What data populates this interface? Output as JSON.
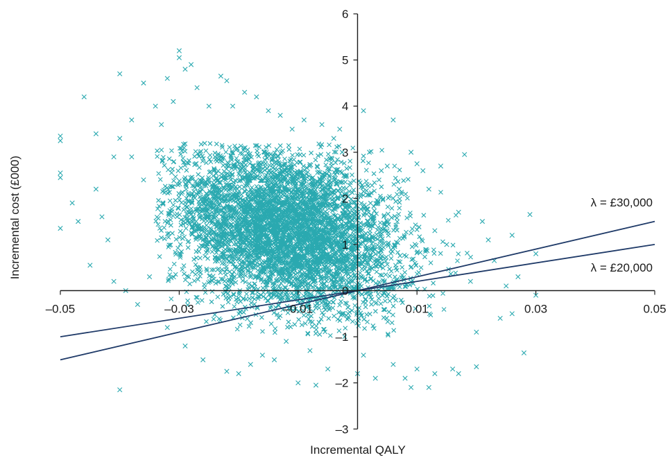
{
  "chart_data": {
    "type": "scatter",
    "title": "",
    "xlabel": "Incremental QALY",
    "ylabel": "Incremental cost (£000)",
    "xlim": [
      -0.05,
      0.05
    ],
    "ylim": [
      -3,
      6
    ],
    "x_ticks": [
      -0.05,
      -0.03,
      -0.01,
      0.01,
      0.03,
      0.05
    ],
    "x_tick_labels": [
      "–0.05",
      "–0.03",
      "–0.01",
      "0.01",
      "0.03",
      "0.05"
    ],
    "y_ticks": [
      -3,
      -2,
      -1,
      0,
      1,
      2,
      3,
      4,
      5,
      6
    ],
    "y_tick_labels": [
      "–3",
      "–2",
      "–1",
      "0",
      "1",
      "2",
      "3",
      "4",
      "5",
      "6"
    ],
    "grid": false,
    "marker": "x",
    "colors": {
      "points": "#2aa9b0",
      "lines": "#1f3a68",
      "axes": "#1a1a1a"
    },
    "lines": [
      {
        "label": "λ = £30,000",
        "slope": 30,
        "x_range": [
          -0.05,
          0.05
        ]
      },
      {
        "label": "λ = £20,000",
        "slope": 20,
        "x_range": [
          -0.05,
          0.05
        ]
      }
    ],
    "point_cloud": {
      "description_of_density": "dense cloud of probabilistic simulations",
      "core_center": [
        -0.012,
        1.3
      ],
      "core_x_range": [
        -0.034,
        0.02
      ],
      "core_y_range": [
        -1.0,
        3.2
      ],
      "count_estimate": 10000
    },
    "series": [
      {
        "name": "",
        "points": [
          [
            -0.05,
            3.35
          ],
          [
            -0.05,
            3.25
          ],
          [
            -0.05,
            2.55
          ],
          [
            -0.05,
            2.45
          ],
          [
            -0.05,
            1.35
          ],
          [
            -0.048,
            1.9
          ],
          [
            -0.047,
            1.5
          ],
          [
            -0.046,
            4.2
          ],
          [
            -0.045,
            0.55
          ],
          [
            -0.044,
            3.4
          ],
          [
            -0.044,
            2.2
          ],
          [
            -0.043,
            1.6
          ],
          [
            -0.042,
            1.1
          ],
          [
            -0.041,
            2.9
          ],
          [
            -0.041,
            0.2
          ],
          [
            -0.04,
            4.7
          ],
          [
            -0.04,
            3.3
          ],
          [
            -0.04,
            -2.15
          ],
          [
            -0.039,
            0.0
          ],
          [
            -0.038,
            2.9
          ],
          [
            -0.038,
            3.7
          ],
          [
            -0.037,
            -0.3
          ],
          [
            -0.036,
            4.5
          ],
          [
            -0.036,
            2.4
          ],
          [
            -0.035,
            0.3
          ],
          [
            -0.034,
            4.0
          ],
          [
            -0.033,
            3.6
          ],
          [
            -0.032,
            4.6
          ],
          [
            -0.032,
            -0.8
          ],
          [
            -0.031,
            4.1
          ],
          [
            -0.03,
            5.2
          ],
          [
            -0.03,
            5.05
          ],
          [
            -0.029,
            4.8
          ],
          [
            -0.029,
            -1.2
          ],
          [
            -0.028,
            4.9
          ],
          [
            -0.027,
            4.4
          ],
          [
            -0.026,
            -1.5
          ],
          [
            -0.025,
            4.0
          ],
          [
            -0.023,
            4.65
          ],
          [
            -0.022,
            4.55
          ],
          [
            -0.022,
            -1.75
          ],
          [
            -0.021,
            4.0
          ],
          [
            -0.02,
            -1.8
          ],
          [
            -0.019,
            4.3
          ],
          [
            -0.018,
            -1.6
          ],
          [
            -0.017,
            4.2
          ],
          [
            -0.016,
            -1.4
          ],
          [
            -0.015,
            3.9
          ],
          [
            -0.014,
            -1.5
          ],
          [
            -0.013,
            3.8
          ],
          [
            -0.012,
            -1.1
          ],
          [
            -0.011,
            3.5
          ],
          [
            -0.01,
            -2.0
          ],
          [
            -0.009,
            3.7
          ],
          [
            -0.008,
            -1.3
          ],
          [
            -0.007,
            -2.05
          ],
          [
            -0.006,
            3.6
          ],
          [
            -0.005,
            -1.7
          ],
          [
            -0.004,
            3.3
          ],
          [
            -0.003,
            3.5
          ],
          [
            0.0,
            -1.8
          ],
          [
            0.001,
            3.9
          ],
          [
            0.001,
            -1.4
          ],
          [
            0.002,
            3.0
          ],
          [
            0.003,
            -1.9
          ],
          [
            0.004,
            2.6
          ],
          [
            0.005,
            2.7
          ],
          [
            0.006,
            3.7
          ],
          [
            0.006,
            -1.6
          ],
          [
            0.007,
            2.2
          ],
          [
            0.008,
            -1.9
          ],
          [
            0.009,
            3.0
          ],
          [
            0.009,
            -2.1
          ],
          [
            0.01,
            2.75
          ],
          [
            0.01,
            -1.7
          ],
          [
            0.011,
            2.6
          ],
          [
            0.012,
            2.2
          ],
          [
            0.012,
            -2.1
          ],
          [
            0.013,
            1.3
          ],
          [
            0.013,
            -1.8
          ],
          [
            0.014,
            2.7
          ],
          [
            0.015,
            1.0
          ],
          [
            0.016,
            -1.7
          ],
          [
            0.017,
            1.7
          ],
          [
            0.017,
            -1.8
          ],
          [
            0.018,
            2.95
          ],
          [
            0.019,
            0.2
          ],
          [
            0.02,
            -0.9
          ],
          [
            0.02,
            -1.65
          ],
          [
            0.021,
            1.5
          ],
          [
            0.022,
            1.1
          ],
          [
            0.023,
            0.65
          ],
          [
            0.024,
            -0.6
          ],
          [
            0.025,
            0.1
          ],
          [
            0.026,
            -0.5
          ],
          [
            0.026,
            1.2
          ],
          [
            0.027,
            0.3
          ],
          [
            0.028,
            -1.35
          ],
          [
            0.029,
            1.65
          ],
          [
            0.03,
            0.8
          ],
          [
            0.03,
            -0.1
          ]
        ]
      }
    ]
  }
}
